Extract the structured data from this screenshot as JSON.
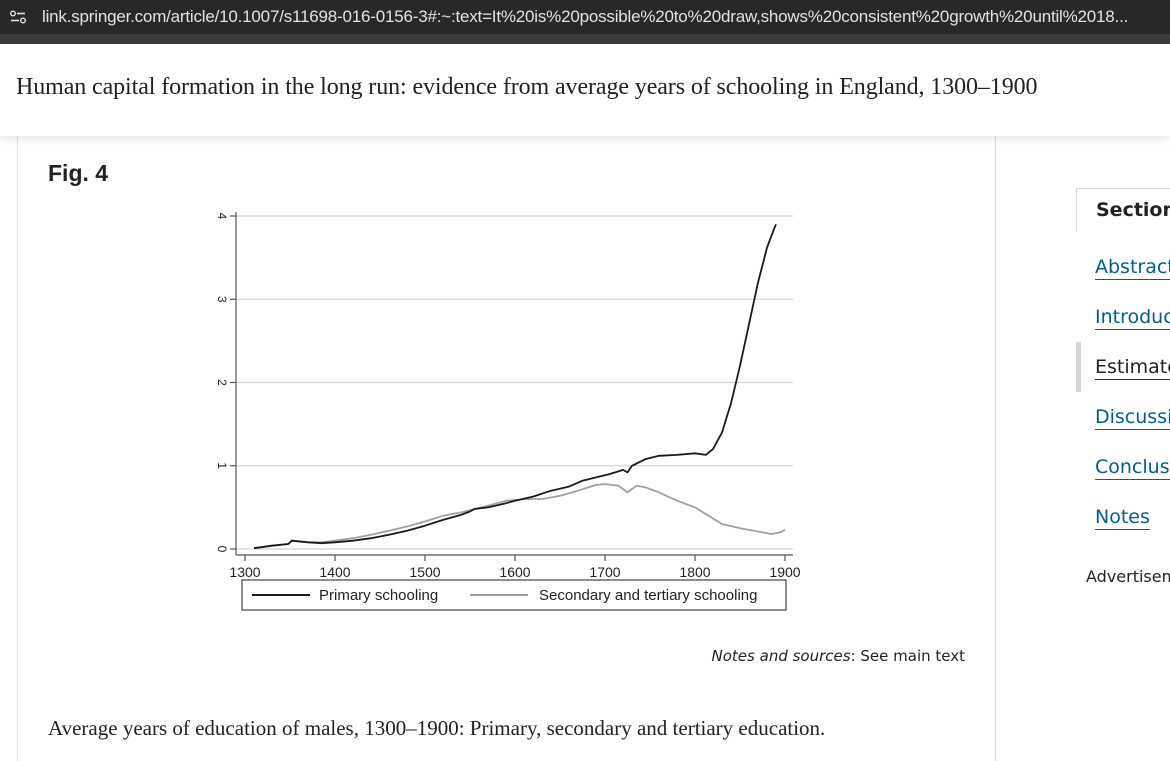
{
  "browser": {
    "url": "link.springer.com/article/10.1007/s11698-016-0156-3#:~:text=It%20is%20possible%20to%20draw,shows%20consistent%20growth%20until%2018..."
  },
  "article": {
    "title": "Human capital formation in the long run: evidence from average years of schooling in England, 1300–1900"
  },
  "figure": {
    "label": "Fig. 4",
    "notes_italic": "Notes and sources",
    "notes_rest": ": See main text",
    "caption": "Average years of education of males, 1300–1900: Primary, secondary and tertiary education."
  },
  "sidebar": {
    "title": "Sections",
    "items": [
      {
        "label": "Abstract",
        "active": false
      },
      {
        "label": "Introduction",
        "active": false
      },
      {
        "label": "Estimates",
        "active": true
      },
      {
        "label": "Discussion",
        "active": false
      },
      {
        "label": "Conclusion",
        "active": false
      },
      {
        "label": "Notes",
        "active": false
      }
    ],
    "advert_label": "Advertisement"
  },
  "colors": {
    "link": "#025e8d",
    "primary_series": "#1a1a1a",
    "secondary_series": "#a0a0a0"
  },
  "chart_data": {
    "type": "line",
    "title": "",
    "xlabel": "",
    "ylabel": "",
    "xlim": [
      1290,
      1915
    ],
    "ylim": [
      -0.2,
      4.1
    ],
    "x_ticks": [
      1300,
      1400,
      1500,
      1600,
      1700,
      1800,
      1900
    ],
    "y_ticks": [
      0,
      1,
      2,
      3,
      4
    ],
    "grid": "horizontal",
    "legend_position": "bottom",
    "series": [
      {
        "name": "Primary schooling",
        "color": "#1a1a1a",
        "points": [
          [
            1310,
            0.01
          ],
          [
            1330,
            0.04
          ],
          [
            1348,
            0.06
          ],
          [
            1352,
            0.1
          ],
          [
            1370,
            0.08
          ],
          [
            1385,
            0.07
          ],
          [
            1400,
            0.08
          ],
          [
            1420,
            0.1
          ],
          [
            1440,
            0.13
          ],
          [
            1460,
            0.17
          ],
          [
            1480,
            0.22
          ],
          [
            1500,
            0.28
          ],
          [
            1520,
            0.35
          ],
          [
            1540,
            0.41
          ],
          [
            1550,
            0.45
          ],
          [
            1555,
            0.48
          ],
          [
            1570,
            0.5
          ],
          [
            1590,
            0.55
          ],
          [
            1600,
            0.58
          ],
          [
            1620,
            0.63
          ],
          [
            1640,
            0.7
          ],
          [
            1660,
            0.75
          ],
          [
            1675,
            0.82
          ],
          [
            1690,
            0.86
          ],
          [
            1705,
            0.9
          ],
          [
            1720,
            0.95
          ],
          [
            1725,
            0.92
          ],
          [
            1730,
            1.0
          ],
          [
            1745,
            1.08
          ],
          [
            1760,
            1.12
          ],
          [
            1780,
            1.13
          ],
          [
            1800,
            1.15
          ],
          [
            1812,
            1.13
          ],
          [
            1820,
            1.2
          ],
          [
            1830,
            1.4
          ],
          [
            1840,
            1.75
          ],
          [
            1850,
            2.2
          ],
          [
            1860,
            2.7
          ],
          [
            1870,
            3.2
          ],
          [
            1880,
            3.62
          ],
          [
            1888,
            3.85
          ],
          [
            1890,
            3.9
          ]
        ]
      },
      {
        "name": "Secondary and tertiary schooling",
        "color": "#a0a0a0",
        "points": [
          [
            1310,
            0.01
          ],
          [
            1330,
            0.04
          ],
          [
            1348,
            0.06
          ],
          [
            1352,
            0.1
          ],
          [
            1370,
            0.08
          ],
          [
            1385,
            0.08
          ],
          [
            1400,
            0.1
          ],
          [
            1420,
            0.13
          ],
          [
            1440,
            0.17
          ],
          [
            1460,
            0.22
          ],
          [
            1480,
            0.27
          ],
          [
            1500,
            0.33
          ],
          [
            1520,
            0.4
          ],
          [
            1540,
            0.44
          ],
          [
            1555,
            0.48
          ],
          [
            1570,
            0.52
          ],
          [
            1590,
            0.58
          ],
          [
            1610,
            0.6
          ],
          [
            1630,
            0.6
          ],
          [
            1650,
            0.64
          ],
          [
            1670,
            0.7
          ],
          [
            1690,
            0.77
          ],
          [
            1700,
            0.78
          ],
          [
            1715,
            0.76
          ],
          [
            1725,
            0.68
          ],
          [
            1735,
            0.76
          ],
          [
            1745,
            0.74
          ],
          [
            1760,
            0.68
          ],
          [
            1780,
            0.58
          ],
          [
            1800,
            0.5
          ],
          [
            1815,
            0.4
          ],
          [
            1830,
            0.3
          ],
          [
            1850,
            0.25
          ],
          [
            1870,
            0.21
          ],
          [
            1885,
            0.18
          ],
          [
            1895,
            0.2
          ],
          [
            1900,
            0.23
          ]
        ]
      }
    ]
  }
}
